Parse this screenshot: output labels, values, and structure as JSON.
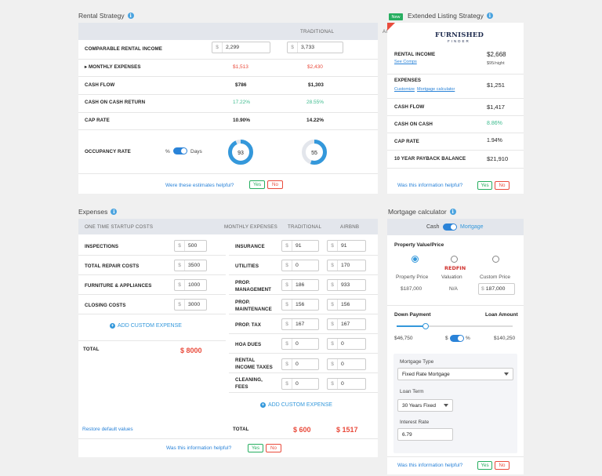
{
  "rental": {
    "title": "Rental Strategy",
    "col_traditional": "TRADITIONAL",
    "col_airbnb": "AIRBNB",
    "rows": [
      {
        "label": "COMPARABLE RENTAL INCOME",
        "prefix": "$",
        "traditional": "2,299",
        "airbnb": "3,733"
      },
      {
        "label": "MONTHLY EXPENSES",
        "traditional": "$1,513",
        "airbnb": "$2,430"
      },
      {
        "label": "CASH FLOW",
        "traditional": "$786",
        "airbnb": "$1,303"
      },
      {
        "label": "CASH ON CASH RETURN",
        "traditional": "17.22%",
        "airbnb": "28.55%"
      },
      {
        "label": "CAP RATE",
        "traditional": "10.90%",
        "airbnb": "14.22%"
      },
      {
        "label": "OCCUPANCY RATE",
        "pct_label": "%",
        "days_label": "Days",
        "traditional": "93",
        "airbnb": "55",
        "traditional_fill": 0.93,
        "airbnb_fill": 0.55
      }
    ],
    "helpful": "Were these estimates helpful?",
    "yes": "Yes",
    "no": "No"
  },
  "listing": {
    "badge": "New",
    "title": "Extended Listing Strategy",
    "logo_main": "FURNISHED",
    "logo_sub": "FINDER",
    "rows": [
      {
        "label": "RENTAL INCOME",
        "value": "$2,668",
        "sub_link": "See Comps",
        "sub_value": "$95/night"
      },
      {
        "label": "EXPENSES",
        "value": "$1,251",
        "link1": "Customize",
        "link2": "Mortgage calculator"
      },
      {
        "label": "CASH FLOW",
        "value": "$1,417"
      },
      {
        "label": "CASH ON CASH",
        "value": "8.86%"
      },
      {
        "label": "CAP RATE",
        "value": "1.94%"
      },
      {
        "label": "10 YEAR PAYBACK BALANCE",
        "value": "$21,910"
      }
    ],
    "helpful": "Was this information helpful?",
    "yes": "Yes",
    "no": "No"
  },
  "expenses": {
    "title": "Expenses",
    "startup_header": "ONE TIME STARTUP COSTS",
    "monthly_header": "MONTHLY EXPENSES",
    "col_traditional": "TRADITIONAL",
    "col_airbnb": "AIRBNB",
    "startup": [
      {
        "label": "INSPECTIONS",
        "value": "500"
      },
      {
        "label": "TOTAL REPAIR COSTS",
        "value": "3500"
      },
      {
        "label": "FURNITURE & APPLIANCES",
        "value": "1000"
      },
      {
        "label": "CLOSING COSTS",
        "value": "3000"
      }
    ],
    "add_custom": "ADD CUSTOM EXPENSE",
    "startup_total_label": "TOTAL",
    "startup_total": "$ 8000",
    "monthly": [
      {
        "label": "INSURANCE",
        "traditional": "91",
        "airbnb": "91"
      },
      {
        "label": "UTILITIES",
        "traditional": "0",
        "airbnb": "170"
      },
      {
        "label": "PROP. MANAGEMENT",
        "traditional": "186",
        "airbnb": "933"
      },
      {
        "label": "PROP. MAINTENANCE",
        "traditional": "156",
        "airbnb": "156"
      },
      {
        "label": "PROP. TAX",
        "traditional": "167",
        "airbnb": "167"
      },
      {
        "label": "HOA DUES",
        "traditional": "0",
        "airbnb": "0"
      },
      {
        "label": "RENTAL INCOME TAXES",
        "traditional": "0",
        "airbnb": "0"
      },
      {
        "label": "CLEANING, FEES",
        "traditional": "0",
        "airbnb": "0"
      }
    ],
    "monthly_add_custom": "ADD CUSTOM EXPENSE",
    "monthly_total_label": "TOTAL",
    "monthly_total_traditional": "$ 600",
    "monthly_total_airbnb": "$ 1517",
    "restore": "Restore default values",
    "prefix": "$",
    "helpful": "Was this information helpful?",
    "yes": "Yes",
    "no": "No"
  },
  "mortgage": {
    "title": "Mortgage calculator",
    "cash": "Cash",
    "mortgage": "Mortgage",
    "pv_title": "Property Value/Price",
    "opt1_label": "Property Price",
    "opt1_value": "$187,000",
    "opt2_logo": "REDFIN",
    "opt2_label": "Valuation",
    "opt2_value": "N/A",
    "opt3_label": "Custom Price",
    "opt3_prefix": "$",
    "opt3_value": "187,000",
    "down_payment": "Down Payment",
    "loan_amount": "Loan Amount",
    "down_value": "$46,750",
    "slider_fraction": 0.25,
    "dp_dollar": "$",
    "dp_pct": "%",
    "loan_value": "$140,250",
    "mortgage_type_label": "Mortgage Type",
    "mortgage_type": "Fixed Rate Mortgage",
    "loan_term_label": "Loan Term",
    "loan_term": "30 Years Fixed",
    "interest_label": "Interest Rate",
    "interest": "6.79",
    "helpful": "Was this information helpful?",
    "yes": "Yes",
    "no": "No"
  }
}
